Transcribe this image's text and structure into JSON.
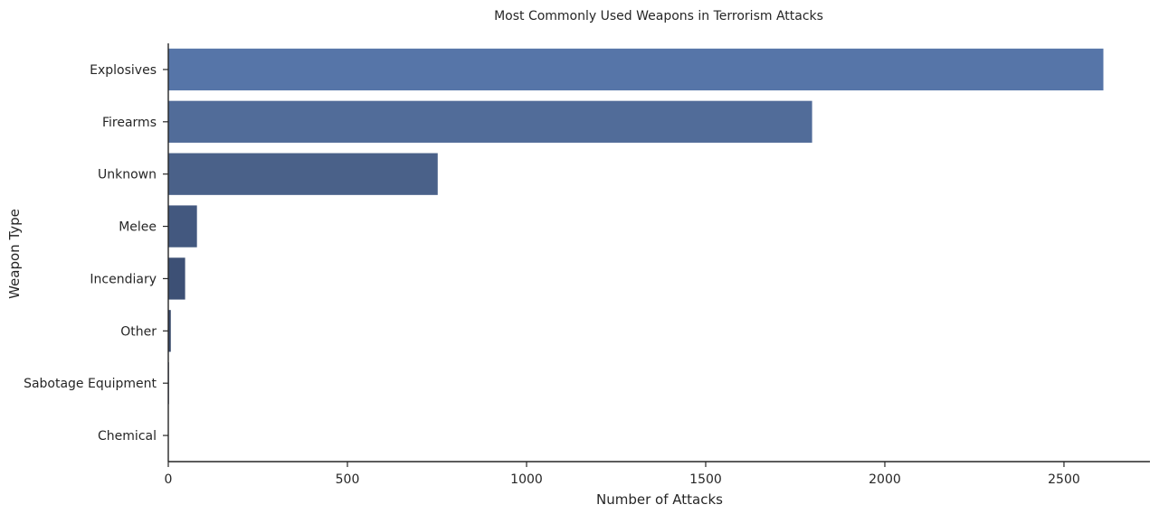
{
  "chart_data": {
    "type": "bar",
    "orientation": "horizontal",
    "title": "Most Commonly Used Weapons in Terrorism Attacks",
    "xlabel": "Number of Attacks",
    "ylabel": "Weapon Type",
    "categories": [
      "Explosives",
      "Firearms",
      "Unknown",
      "Melee",
      "Incendiary",
      "Other",
      "Sabotage Equipment",
      "Chemical"
    ],
    "values": [
      2610,
      1797,
      752,
      80,
      47,
      7,
      2,
      1
    ],
    "xlim": [
      0,
      2740
    ],
    "xticks": [
      0,
      500,
      1000,
      1500,
      2000,
      2500
    ],
    "grid": false,
    "colors": [
      "#5675a8",
      "#516c99",
      "#4a6189",
      "#43587f",
      "#3d5075",
      "#394a6b",
      "#354463",
      "#313f5b"
    ],
    "axis_color": "#262626"
  }
}
